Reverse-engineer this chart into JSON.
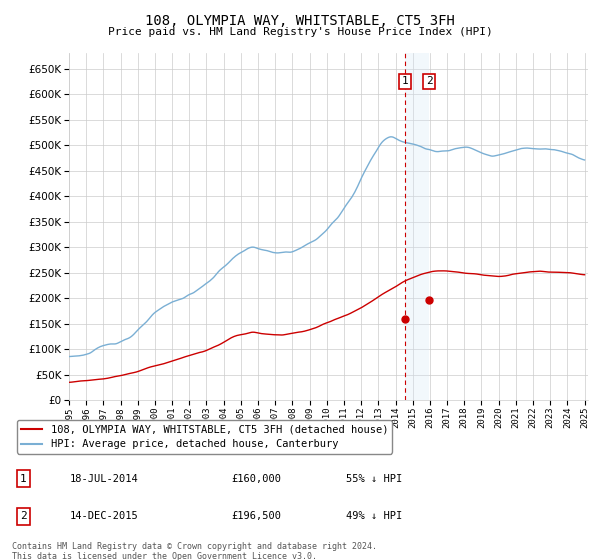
{
  "title": "108, OLYMPIA WAY, WHITSTABLE, CT5 3FH",
  "subtitle": "Price paid vs. HM Land Registry's House Price Index (HPI)",
  "hpi_color": "#7aafd4",
  "price_color": "#cc0000",
  "vline_color": "#cc0000",
  "shade_color": "#d6e8f7",
  "ylim": [
    0,
    680000
  ],
  "yticks": [
    0,
    50000,
    100000,
    150000,
    200000,
    250000,
    300000,
    350000,
    400000,
    450000,
    500000,
    550000,
    600000,
    650000
  ],
  "transaction1_date": "18-JUL-2014",
  "transaction1_price": 160000,
  "transaction1_hpi_pct": "55% ↓ HPI",
  "transaction1_year": 2014.54,
  "transaction2_date": "14-DEC-2015",
  "transaction2_price": 196500,
  "transaction2_hpi_pct": "49% ↓ HPI",
  "transaction2_year": 2015.95,
  "legend_line1": "108, OLYMPIA WAY, WHITSTABLE, CT5 3FH (detached house)",
  "legend_line2": "HPI: Average price, detached house, Canterbury",
  "footer1": "Contains HM Land Registry data © Crown copyright and database right 2024.",
  "footer2": "This data is licensed under the Open Government Licence v3.0.",
  "bg_color": "#ffffff",
  "grid_color": "#cccccc"
}
